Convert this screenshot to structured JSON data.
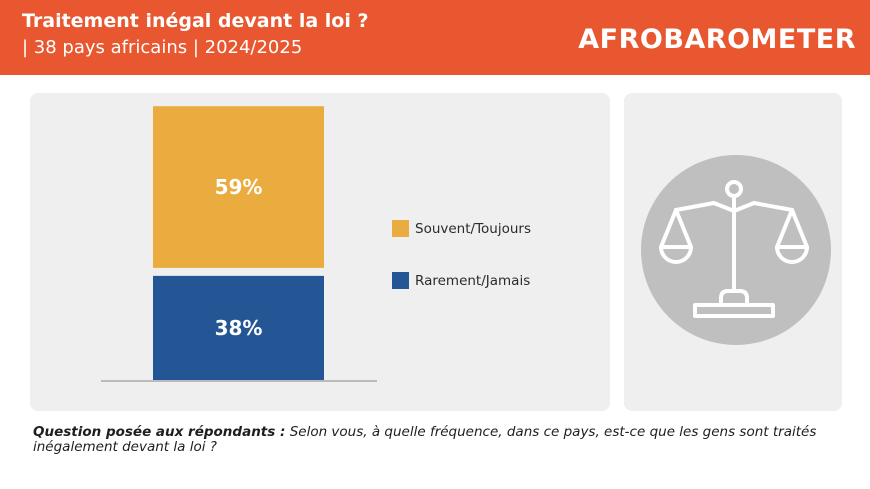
{
  "header": {
    "title": "Traitement inégal devant la loi ?",
    "subtitle": "| 38 pays africains | 2024/2025",
    "logo_text": "AFROBAROMETER"
  },
  "colors": {
    "header_bg": "#e8572f",
    "often_always": "#eaab3f",
    "rarely_never": "#245594",
    "panel_bg": "#efefef",
    "icon_circle": "#bfbfbf"
  },
  "chart_data": {
    "type": "bar",
    "stacked": true,
    "categories": [
      ""
    ],
    "series": [
      {
        "name": "Rarement/Jamais",
        "values": [
          38
        ],
        "label": "38%",
        "color": "#245594"
      },
      {
        "name": "Souvent/Toujours",
        "values": [
          59
        ],
        "label": "59%",
        "color": "#eaab3f"
      }
    ],
    "legend": [
      "Souvent/Toujours",
      "Rarement/Jamais"
    ],
    "legend_position": "right",
    "grid": false
  },
  "icon": {
    "name": "scales-of-justice-icon"
  },
  "footer": {
    "question_label": "Question posée aux répondants :",
    "question_text": "Selon vous, à quelle fréquence, dans ce pays, est-ce que les gens sont traités inégalement devant la loi ?"
  }
}
